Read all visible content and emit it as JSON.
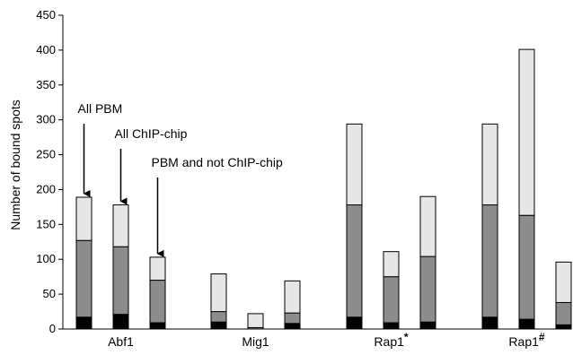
{
  "chart_data": {
    "type": "bar",
    "stacked": true,
    "ylabel": "Number of bound spots",
    "ylim": [
      0,
      450
    ],
    "yticks": [
      0,
      50,
      100,
      150,
      200,
      250,
      300,
      350,
      400,
      450
    ],
    "grid": false,
    "legend": "none",
    "group_labels": [
      {
        "text": "Abf1",
        "sup": ""
      },
      {
        "text": "Mig1",
        "sup": ""
      },
      {
        "text": "Rap1",
        "sup": "*"
      },
      {
        "text": "Rap1",
        "sup": "#"
      }
    ],
    "layer_colors": [
      "#000000",
      "#8c8c8c",
      "#e6e6e6"
    ],
    "groups": [
      {
        "bars": [
          [
            17,
            127,
            189
          ],
          [
            21,
            118,
            178
          ],
          [
            9,
            70,
            103
          ]
        ]
      },
      {
        "bars": [
          [
            10,
            25,
            79
          ],
          [
            0,
            2,
            22
          ],
          [
            8,
            23,
            69
          ]
        ]
      },
      {
        "bars": [
          [
            17,
            178,
            294
          ],
          [
            9,
            75,
            111
          ],
          [
            10,
            104,
            190
          ]
        ]
      },
      {
        "bars": [
          [
            17,
            178,
            294
          ],
          [
            14,
            163,
            401
          ],
          [
            6,
            38,
            96
          ]
        ]
      }
    ],
    "annotations": [
      {
        "text": "All PBM",
        "target": [
          0,
          0
        ]
      },
      {
        "text": "All ChIP-chip",
        "target": [
          0,
          1
        ]
      },
      {
        "text": "PBM and not ChIP-chip",
        "target": [
          0,
          2
        ]
      }
    ]
  }
}
